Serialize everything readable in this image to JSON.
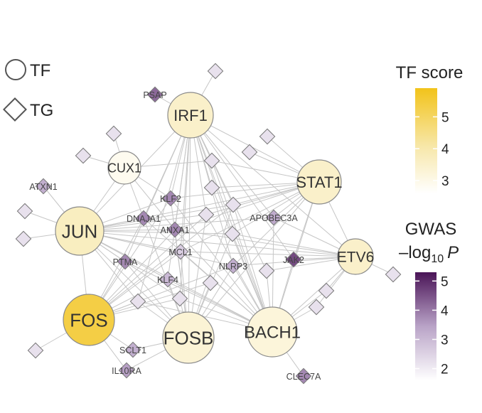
{
  "legend": {
    "tf_label": "TF",
    "tg_label": "TG"
  },
  "colorbars": {
    "tf_score": {
      "title": "TF score",
      "ticks": [
        {
          "label": "5",
          "value": 5
        },
        {
          "label": "4",
          "value": 4
        },
        {
          "label": "3",
          "value": 3
        }
      ],
      "range": [
        2.6,
        5.9
      ],
      "colors": [
        "#ffffff",
        "#f7e7a8",
        "#f2c31a"
      ]
    },
    "gwas": {
      "title_line1": "GWAS",
      "title_line2_prefix": "–log",
      "title_line2_sub": "10",
      "title_line2_suffix": "P",
      "ticks": [
        {
          "label": "5",
          "value": 5
        },
        {
          "label": "4",
          "value": 4
        },
        {
          "label": "3",
          "value": 3
        },
        {
          "label": "2",
          "value": 2
        }
      ],
      "range": [
        1.6,
        5.3
      ],
      "colors": [
        "#ffffff",
        "#b9a3c7",
        "#4a1457"
      ]
    }
  },
  "tf_nodes": [
    {
      "id": "IRF1",
      "label": "IRF1",
      "score": 3.6
    },
    {
      "id": "CUX1",
      "label": "CUX1",
      "score": 2.9
    },
    {
      "id": "STAT1",
      "label": "STAT1",
      "score": 3.6
    },
    {
      "id": "JUN",
      "label": "JUN",
      "score": 3.8
    },
    {
      "id": "ETV6",
      "label": "ETV6",
      "score": 3.6
    },
    {
      "id": "FOS",
      "label": "FOS",
      "score": 5.4
    },
    {
      "id": "FOSB",
      "label": "FOSB",
      "score": 3.4
    },
    {
      "id": "BACH1",
      "label": "BACH1",
      "score": 3.3
    }
  ],
  "tg_nodes": [
    {
      "id": "PSAP",
      "label": "PSAP",
      "gwas": 4.2
    },
    {
      "id": "ATXN1",
      "label": "ATXN1",
      "gwas": 3.2
    },
    {
      "id": "KLF2",
      "label": "KLF2",
      "gwas": 3.8
    },
    {
      "id": "DNAJA1",
      "label": "DNAJA1",
      "gwas": 3.8
    },
    {
      "id": "ANXA1",
      "label": "ANXA1",
      "gwas": 3.8
    },
    {
      "id": "APOBEC3A",
      "label": "APOBEC3A",
      "gwas": 3.3
    },
    {
      "id": "MCL1",
      "label": "MCL1",
      "gwas": 2.6
    },
    {
      "id": "PTMA",
      "label": "PTMA",
      "gwas": 3.8
    },
    {
      "id": "NLRP3",
      "label": "NLRP3",
      "gwas": 3.2
    },
    {
      "id": "JAK2",
      "label": "JAK2",
      "gwas": 4.6
    },
    {
      "id": "KLF4",
      "label": "KLF4",
      "gwas": 3.0
    },
    {
      "id": "SCLT1",
      "label": "SCLT1",
      "gwas": 3.2
    },
    {
      "id": "IL10RA",
      "label": "IL10RA",
      "gwas": 3.5
    },
    {
      "id": "CLEC7A",
      "label": "CLEC7A",
      "gwas": 3.8
    },
    {
      "id": "u1",
      "label": "",
      "gwas": 2.2
    },
    {
      "id": "u2",
      "label": "",
      "gwas": 2.2
    },
    {
      "id": "u3",
      "label": "",
      "gwas": 2.2
    },
    {
      "id": "u4",
      "label": "",
      "gwas": 2.2
    },
    {
      "id": "u5",
      "label": "",
      "gwas": 2.2
    },
    {
      "id": "u6",
      "label": "",
      "gwas": 2.2
    },
    {
      "id": "u7",
      "label": "",
      "gwas": 2.2
    },
    {
      "id": "u8",
      "label": "",
      "gwas": 2.2
    },
    {
      "id": "u9",
      "label": "",
      "gwas": 2.2
    },
    {
      "id": "u10",
      "label": "",
      "gwas": 2.2
    },
    {
      "id": "u11",
      "label": "",
      "gwas": 2.2
    },
    {
      "id": "u12",
      "label": "",
      "gwas": 2.2
    },
    {
      "id": "u13",
      "label": "",
      "gwas": 2.2
    },
    {
      "id": "u14",
      "label": "",
      "gwas": 2.2
    },
    {
      "id": "u15",
      "label": "",
      "gwas": 2.2
    },
    {
      "id": "u16",
      "label": "",
      "gwas": 2.2
    },
    {
      "id": "u17",
      "label": "",
      "gwas": 2.2
    },
    {
      "id": "u18",
      "label": "",
      "gwas": 2.2
    },
    {
      "id": "u19",
      "label": "",
      "gwas": 2.2
    },
    {
      "id": "u20",
      "label": "",
      "gwas": 2.2
    }
  ],
  "edges": [
    [
      "IRF1",
      "PSAP"
    ],
    [
      "IRF1",
      "KLF2"
    ],
    [
      "IRF1",
      "DNAJA1"
    ],
    [
      "IRF1",
      "ANXA1"
    ],
    [
      "IRF1",
      "APOBEC3A"
    ],
    [
      "IRF1",
      "MCL1"
    ],
    [
      "IRF1",
      "PTMA"
    ],
    [
      "IRF1",
      "NLRP3"
    ],
    [
      "IRF1",
      "JAK2"
    ],
    [
      "IRF1",
      "KLF4"
    ],
    [
      "IRF1",
      "u1"
    ],
    [
      "IRF1",
      "u10"
    ],
    [
      "IRF1",
      "u11"
    ],
    [
      "IRF1",
      "u12"
    ],
    [
      "IRF1",
      "u13"
    ],
    [
      "IRF1",
      "u14"
    ],
    [
      "IRF1",
      "u15"
    ],
    [
      "IRF1",
      "u16"
    ],
    [
      "IRF1",
      "u17"
    ],
    [
      "IRF1",
      "STAT1"
    ],
    [
      "IRF1",
      "JUN"
    ],
    [
      "IRF1",
      "FOSB"
    ],
    [
      "IRF1",
      "BACH1"
    ],
    [
      "IRF1",
      "ETV6"
    ],
    [
      "CUX1",
      "u2"
    ],
    [
      "CUX1",
      "u3"
    ],
    [
      "CUX1",
      "KLF2"
    ],
    [
      "CUX1",
      "DNAJA1"
    ],
    [
      "CUX1",
      "u10"
    ],
    [
      "CUX1",
      "JUN"
    ],
    [
      "CUX1",
      "ANXA1"
    ],
    [
      "STAT1",
      "u4"
    ],
    [
      "STAT1",
      "u5"
    ],
    [
      "STAT1",
      "u10"
    ],
    [
      "STAT1",
      "u11"
    ],
    [
      "STAT1",
      "APOBEC3A"
    ],
    [
      "STAT1",
      "KLF2"
    ],
    [
      "STAT1",
      "ANXA1"
    ],
    [
      "STAT1",
      "MCL1"
    ],
    [
      "STAT1",
      "NLRP3"
    ],
    [
      "STAT1",
      "JAK2"
    ],
    [
      "STAT1",
      "u12"
    ],
    [
      "STAT1",
      "u13"
    ],
    [
      "STAT1",
      "ETV6"
    ],
    [
      "STAT1",
      "JUN"
    ],
    [
      "STAT1",
      "FOSB"
    ],
    [
      "STAT1",
      "BACH1"
    ],
    [
      "STAT1",
      "u14"
    ],
    [
      "JUN",
      "ATXN1"
    ],
    [
      "JUN",
      "u6"
    ],
    [
      "JUN",
      "u7"
    ],
    [
      "JUN",
      "KLF2"
    ],
    [
      "JUN",
      "DNAJA1"
    ],
    [
      "JUN",
      "ANXA1"
    ],
    [
      "JUN",
      "MCL1"
    ],
    [
      "JUN",
      "PTMA"
    ],
    [
      "JUN",
      "KLF4"
    ],
    [
      "JUN",
      "NLRP3"
    ],
    [
      "JUN",
      "APOBEC3A"
    ],
    [
      "JUN",
      "u12"
    ],
    [
      "JUN",
      "u14"
    ],
    [
      "JUN",
      "u15"
    ],
    [
      "JUN",
      "u16"
    ],
    [
      "JUN",
      "FOS"
    ],
    [
      "JUN",
      "FOSB"
    ],
    [
      "JUN",
      "BACH1"
    ],
    [
      "JUN",
      "ETV6"
    ],
    [
      "JUN",
      "u13"
    ],
    [
      "ETV6",
      "u8"
    ],
    [
      "ETV6",
      "u18"
    ],
    [
      "ETV6",
      "u19"
    ],
    [
      "ETV6",
      "JAK2"
    ],
    [
      "ETV6",
      "NLRP3"
    ],
    [
      "ETV6",
      "APOBEC3A"
    ],
    [
      "ETV6",
      "u17"
    ],
    [
      "ETV6",
      "MCL1"
    ],
    [
      "ETV6",
      "BACH1"
    ],
    [
      "ETV6",
      "u14"
    ],
    [
      "ETV6",
      "ANXA1"
    ],
    [
      "FOS",
      "u9"
    ],
    [
      "FOS",
      "SCLT1"
    ],
    [
      "FOS",
      "IL10RA"
    ],
    [
      "FOS",
      "PTMA"
    ],
    [
      "FOS",
      "KLF4"
    ],
    [
      "FOS",
      "MCL1"
    ],
    [
      "FOS",
      "ANXA1"
    ],
    [
      "FOS",
      "DNAJA1"
    ],
    [
      "FOS",
      "KLF2"
    ],
    [
      "FOS",
      "u12"
    ],
    [
      "FOS",
      "u15"
    ],
    [
      "FOS",
      "u16"
    ],
    [
      "FOS",
      "u20"
    ],
    [
      "FOS",
      "NLRP3"
    ],
    [
      "FOS",
      "u13"
    ],
    [
      "FOSB",
      "SCLT1"
    ],
    [
      "FOSB",
      "IL10RA"
    ],
    [
      "FOSB",
      "u20"
    ],
    [
      "FOSB",
      "u15"
    ],
    [
      "FOSB",
      "KLF4"
    ],
    [
      "FOSB",
      "PTMA"
    ],
    [
      "FOSB",
      "MCL1"
    ],
    [
      "FOSB",
      "ANXA1"
    ],
    [
      "FOSB",
      "DNAJA1"
    ],
    [
      "FOSB",
      "KLF2"
    ],
    [
      "FOSB",
      "u12"
    ],
    [
      "FOSB",
      "u16"
    ],
    [
      "FOSB",
      "NLRP3"
    ],
    [
      "FOSB",
      "u14"
    ],
    [
      "FOSB",
      "u13"
    ],
    [
      "BACH1",
      "CLEC7A"
    ],
    [
      "BACH1",
      "u18"
    ],
    [
      "BACH1",
      "u19"
    ],
    [
      "BACH1",
      "JAK2"
    ],
    [
      "BACH1",
      "u17"
    ],
    [
      "BACH1",
      "NLRP3"
    ],
    [
      "BACH1",
      "MCL1"
    ],
    [
      "BACH1",
      "u14"
    ],
    [
      "BACH1",
      "u13"
    ],
    [
      "BACH1",
      "APOBEC3A"
    ],
    [
      "BACH1",
      "KLF2"
    ],
    [
      "BACH1",
      "ANXA1"
    ],
    [
      "BACH1",
      "DNAJA1"
    ],
    [
      "BACH1",
      "PTMA"
    ],
    [
      "BACH1",
      "u12"
    ],
    [
      "BACH1",
      "u16"
    ],
    [
      "BACH1",
      "u15"
    ],
    [
      "BACH1",
      "u11"
    ],
    [
      "BACH1",
      "u10"
    ],
    [
      "BACH1",
      "KLF4"
    ]
  ]
}
